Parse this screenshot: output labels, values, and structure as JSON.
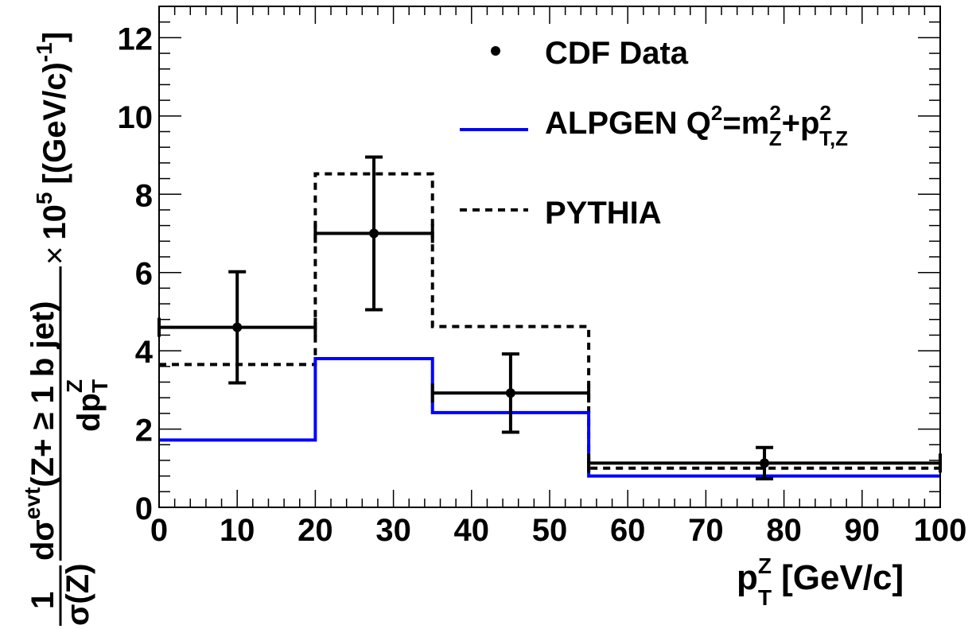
{
  "chart_data": {
    "type": "histogram",
    "xlabel": {
      "main": "p",
      "sup": "Z",
      "sub": "T",
      "unit": "[GeV/c]"
    },
    "ylabel": {
      "frac1_num": "1",
      "frac1_den": "σ(Z)",
      "frac2_num_d": "dσ",
      "frac2_num_sup": "evt",
      "frac2_num_rest": "(Z+ ≥ 1 b jet)",
      "frac2_den_d": "dp",
      "frac2_den_sup": "Z",
      "frac2_den_sub": "T",
      "times": "×",
      "scale": "10",
      "scale_exp": "5",
      "unit": "[(GeV/c)",
      "unit_exp": "-1",
      "unit_close": "]"
    },
    "xlim": [
      0,
      100
    ],
    "ylim": [
      0,
      12.8
    ],
    "x_ticks": [
      "0",
      "10",
      "20",
      "30",
      "40",
      "50",
      "60",
      "70",
      "80",
      "90",
      "100"
    ],
    "y_ticks": [
      "0",
      "2",
      "4",
      "6",
      "8",
      "10",
      "12"
    ],
    "bin_edges": [
      0,
      20,
      35,
      55,
      100
    ],
    "series": [
      {
        "name": "CDF Data",
        "style": "points",
        "color": "#000000",
        "points": [
          {
            "x": 10,
            "y": 4.6,
            "xerr": 10,
            "yerr_up": 1.42,
            "yerr_down": 1.42
          },
          {
            "x": 27.5,
            "y": 7.0,
            "xerr": 7.5,
            "yerr_up": 1.95,
            "yerr_down": 1.95
          },
          {
            "x": 45,
            "y": 2.92,
            "xerr": 10,
            "yerr_up": 1.0,
            "yerr_down": 1.0
          },
          {
            "x": 77.5,
            "y": 1.13,
            "xerr": 22.5,
            "yerr_up": 0.4,
            "yerr_down": 0.4
          }
        ]
      },
      {
        "name": "ALPGEN",
        "legend_parts": {
          "a": "ALPGEN Q",
          "a_sup": "2",
          "b": "=m",
          "b_sup": "2",
          "b_sub": "Z",
          "c": "+p",
          "c_sup": "2",
          "c_sub": "T,Z"
        },
        "style": "solid-step",
        "color": "#0000ff",
        "values": [
          1.72,
          3.8,
          2.42,
          0.8
        ]
      },
      {
        "name": "PYTHIA",
        "style": "dashed-step",
        "color": "#000000",
        "values": [
          3.65,
          8.52,
          4.62,
          1.0
        ]
      }
    ]
  }
}
